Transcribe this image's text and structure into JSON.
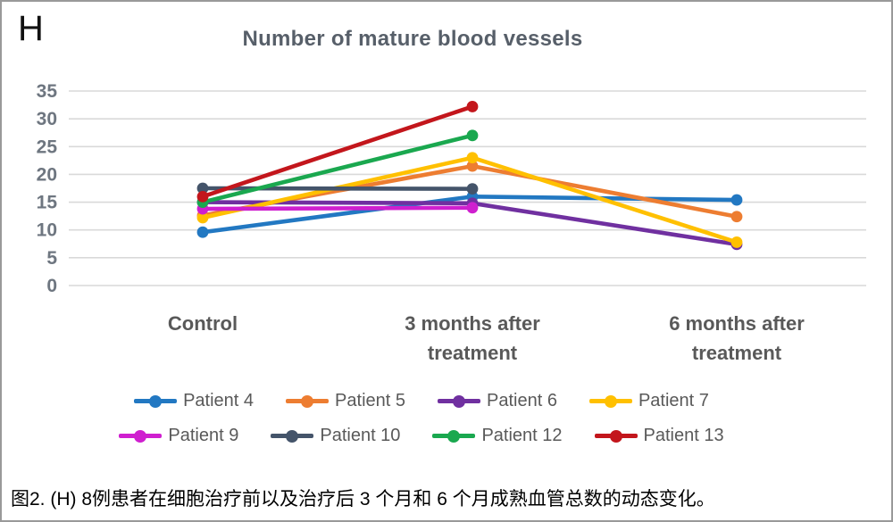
{
  "figure": {
    "panel_label": "H",
    "caption": "图2. (H) 8例患者在细胞治疗前以及治疗后 3 个月和 6 个月成熟血管总数的动态变化。"
  },
  "chart_data": {
    "type": "line",
    "title": "Number of mature blood vessels",
    "categories": [
      "Control",
      "3 months after treatment",
      "6 months after treatment"
    ],
    "series": [
      {
        "name": "Patient 4",
        "color": "#2278C2",
        "values": [
          9.6,
          16,
          15.4
        ]
      },
      {
        "name": "Patient 5",
        "color": "#ED7D31",
        "values": [
          12.6,
          21.5,
          12.4
        ]
      },
      {
        "name": "Patient 6",
        "color": "#7030A0",
        "values": [
          15,
          14.8,
          7.4
        ]
      },
      {
        "name": "Patient 7",
        "color": "#FFC000",
        "values": [
          12.2,
          23,
          7.8
        ]
      },
      {
        "name": "Patient 9",
        "color": "#CF1FCF",
        "values": [
          13.8,
          14,
          null
        ]
      },
      {
        "name": "Patient 10",
        "color": "#44546A",
        "values": [
          17.5,
          17.4,
          null
        ]
      },
      {
        "name": "Patient 12",
        "color": "#1AA84F",
        "values": [
          15,
          27,
          null
        ]
      },
      {
        "name": "Patient 13",
        "color": "#C3161C",
        "values": [
          16,
          32.2,
          null
        ]
      }
    ],
    "ylim": [
      0,
      35
    ],
    "ytick_step": 5,
    "grid": "horizontal",
    "gridline_color": "#d9d9d9",
    "ytick_color": "#6e7680",
    "xlabel_color": "#595959",
    "legend_position": "bottom",
    "legend_rows": [
      [
        "Patient 4",
        "Patient 5",
        "Patient 6",
        "Patient 7"
      ],
      [
        "Patient 9",
        "Patient 10",
        "Patient 12",
        "Patient 13"
      ]
    ]
  }
}
